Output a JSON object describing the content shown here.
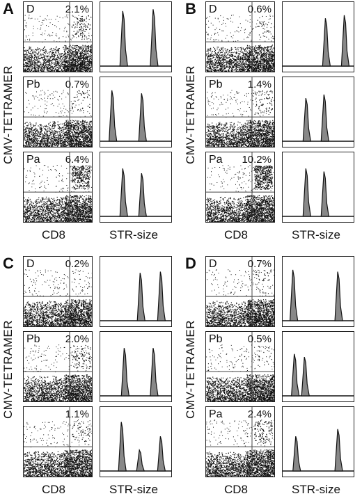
{
  "figure": {
    "panels": [
      {
        "letter": "A",
        "ylabel": "CMV-TETRAMER",
        "xlabel_flow": "CD8",
        "xlabel_str": "STR-size",
        "rows": [
          {
            "sample": "D",
            "percent": "2.1%",
            "peaks": [
              {
                "x": 0.32,
                "h": 0.92
              },
              {
                "x": 0.74,
                "h": 0.95
              }
            ]
          },
          {
            "sample": "Pb",
            "percent": "0.7%",
            "peaks": [
              {
                "x": 0.17,
                "h": 0.85
              },
              {
                "x": 0.58,
                "h": 0.8
              }
            ]
          },
          {
            "sample": "Pa",
            "percent": "6.4%",
            "peaks": [
              {
                "x": 0.32,
                "h": 0.8
              },
              {
                "x": 0.58,
                "h": 0.72
              }
            ]
          }
        ]
      },
      {
        "letter": "B",
        "ylabel": "CMV-TETRAMER",
        "xlabel_flow": "CD8",
        "xlabel_str": "STR-size",
        "rows": [
          {
            "sample": "D",
            "percent": "0.6%",
            "peaks": [
              {
                "x": 0.6,
                "h": 0.8
              },
              {
                "x": 0.86,
                "h": 0.85
              }
            ]
          },
          {
            "sample": "Pb",
            "percent": "1.4%",
            "peaks": [
              {
                "x": 0.33,
                "h": 0.72
              },
              {
                "x": 0.58,
                "h": 0.78
              }
            ]
          },
          {
            "sample": "Pa",
            "percent": "10.2%",
            "peaks": [
              {
                "x": 0.33,
                "h": 0.8
              },
              {
                "x": 0.58,
                "h": 0.75
              }
            ]
          }
        ]
      },
      {
        "letter": "C",
        "ylabel": "CMV-TETRAMER",
        "xlabel_flow": "CD8",
        "xlabel_str": "STR-size",
        "rows": [
          {
            "sample": "D",
            "percent": "0.2%",
            "peaks": [
              {
                "x": 0.56,
                "h": 0.8
              },
              {
                "x": 0.84,
                "h": 0.82
              }
            ]
          },
          {
            "sample": "Pb",
            "percent": "2.0%",
            "peaks": [
              {
                "x": 0.34,
                "h": 0.8
              },
              {
                "x": 0.74,
                "h": 0.8
              }
            ]
          },
          {
            "sample": "",
            "percent": "1.1%",
            "peaks": [
              {
                "x": 0.3,
                "h": 0.82
              },
              {
                "x": 0.55,
                "h": 0.35
              },
              {
                "x": 0.84,
                "h": 0.58
              }
            ]
          }
        ]
      },
      {
        "letter": "D",
        "ylabel": "CMV-TETRAMER",
        "xlabel_flow": "CD8",
        "xlabel_str": "STR-size",
        "rows": [
          {
            "sample": "D",
            "percent": "0.7%",
            "peaks": [
              {
                "x": 0.15,
                "h": 0.85
              },
              {
                "x": 0.77,
                "h": 0.82
              }
            ]
          },
          {
            "sample": "Pb",
            "percent": "0.5%",
            "peaks": [
              {
                "x": 0.17,
                "h": 0.7
              },
              {
                "x": 0.31,
                "h": 0.65
              }
            ]
          },
          {
            "sample": "Pa",
            "percent": "2.4%",
            "peaks": [
              {
                "x": 0.19,
                "h": 0.58
              },
              {
                "x": 0.77,
                "h": 0.7
              }
            ]
          }
        ]
      }
    ]
  }
}
